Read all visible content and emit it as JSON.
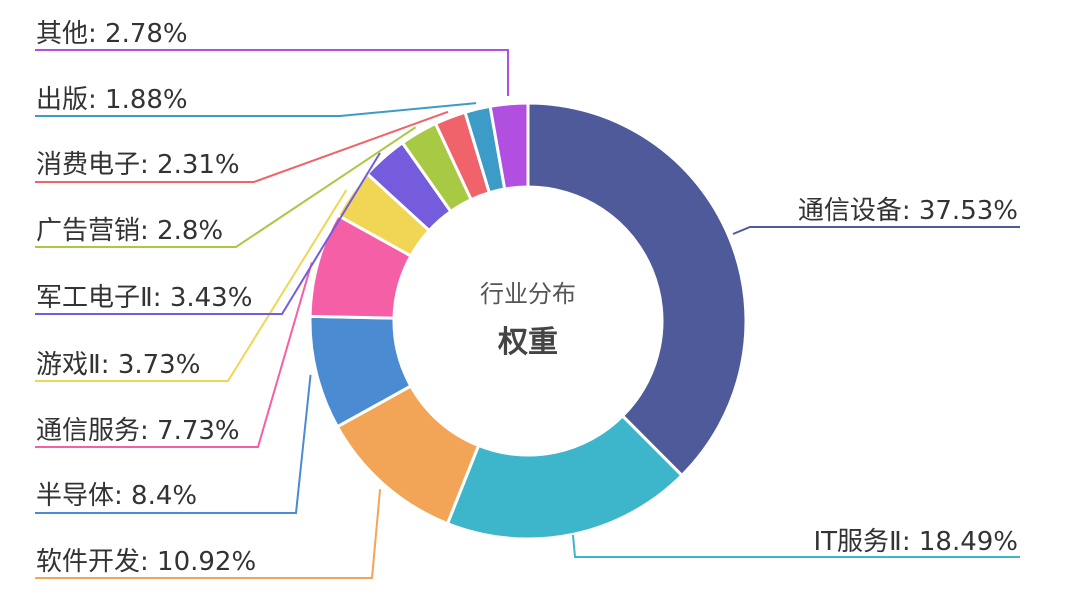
{
  "chart_data": {
    "type": "pie",
    "variant": "donut",
    "center_title": "行业分布",
    "center_subtitle": "权重",
    "slices": [
      {
        "name": "通信设备",
        "value": 37.53,
        "label": "通信设备: 37.53%",
        "color": "#4e5a99"
      },
      {
        "name": "IT服务Ⅱ",
        "value": 18.49,
        "label": "IT服务Ⅱ: 18.49%",
        "color": "#3db6cc"
      },
      {
        "name": "软件开发",
        "value": 10.92,
        "label": "软件开发: 10.92%",
        "color": "#f2a556"
      },
      {
        "name": "半导体",
        "value": 8.4,
        "label": "半导体: 8.4%",
        "color": "#4a8bd1"
      },
      {
        "name": "通信服务",
        "value": 7.73,
        "label": "通信服务: 7.73%",
        "color": "#f45fa6"
      },
      {
        "name": "游戏Ⅱ",
        "value": 3.73,
        "label": "游戏Ⅱ: 3.73%",
        "color": "#f1d655"
      },
      {
        "name": "军工电子Ⅱ",
        "value": 3.43,
        "label": "军工电子Ⅱ: 3.43%",
        "color": "#745cdc"
      },
      {
        "name": "广告营销",
        "value": 2.8,
        "label": "广告营销: 2.8%",
        "color": "#a8c943"
      },
      {
        "name": "消费电子",
        "value": 2.31,
        "label": "消费电子: 2.31%",
        "color": "#f0636a"
      },
      {
        "name": "出版",
        "value": 1.88,
        "label": "出版: 1.88%",
        "color": "#3d9cc7"
      },
      {
        "name": "其他",
        "value": 2.78,
        "label": "其他: 2.78%",
        "color": "#b14fe0"
      }
    ]
  }
}
